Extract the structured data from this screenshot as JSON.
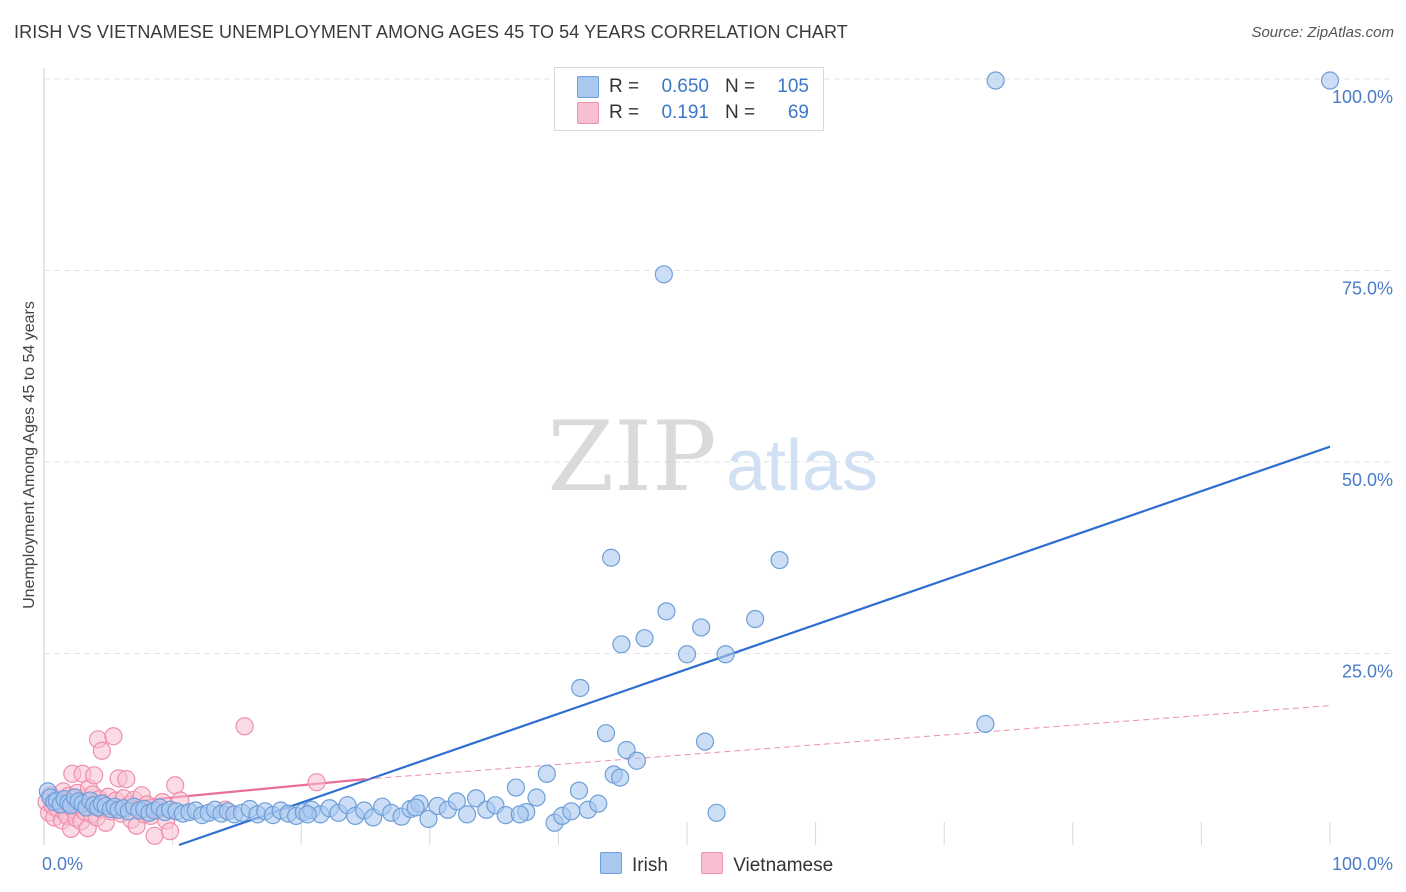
{
  "header": {
    "title": "IRISH VS VIETNAMESE UNEMPLOYMENT AMONG AGES 45 TO 54 YEARS CORRELATION CHART",
    "source": "Source: ZipAtlas.com"
  },
  "watermark": {
    "zip": "ZIP",
    "atlas": "atlas"
  },
  "stats_legend": {
    "rows": [
      {
        "r_label": "R =",
        "r_value": "0.650",
        "n_label": "N =",
        "n_value": "105",
        "color": "#a9c8f0"
      },
      {
        "r_label": "R =",
        "r_value": "0.191",
        "n_label": "N =",
        "n_value": "69",
        "color": "#f5b4c8"
      }
    ]
  },
  "bottom_legend": {
    "items": [
      {
        "label": "Irish",
        "color": "#a9c8f0"
      },
      {
        "label": "Vietnamese",
        "color": "#f5b4c8"
      }
    ]
  },
  "colors": {
    "irish_fill": "#a9c8f0",
    "irish_stroke": "#6f9fd8",
    "irish_line": "#2f6fd0",
    "viet_fill": "#f7bfd0",
    "viet_stroke": "#ee8fae",
    "viet_line": "#e86f9a",
    "tick_text": "#4a7cc8",
    "grid": "#e3e3e3"
  },
  "chart_data": {
    "type": "scatter",
    "title": "IRISH VS VIETNAMESE UNEMPLOYMENT AMONG AGES 45 TO 54 YEARS CORRELATION CHART",
    "xlabel": "",
    "ylabel": "Unemployment Among Ages 45 to 54 years",
    "xlim": [
      0,
      100
    ],
    "ylim": [
      0,
      100
    ],
    "x_tick_labels": [
      "0.0%",
      "100.0%"
    ],
    "y_ticks": [
      25,
      50,
      75,
      100
    ],
    "y_tick_labels": [
      "25.0%",
      "50.0%",
      "75.0%",
      "100.0%"
    ],
    "grid": true,
    "legend_position": "top-center",
    "series": [
      {
        "name": "Irish",
        "r": 0.65,
        "n": 105,
        "trend": {
          "x": [
            10.5,
            100
          ],
          "y": [
            0,
            52
          ]
        },
        "points": [
          [
            0.3,
            7
          ],
          [
            0.5,
            6.2
          ],
          [
            0.8,
            5.6
          ],
          [
            1.0,
            5.8
          ],
          [
            1.3,
            5.3
          ],
          [
            1.6,
            6.0
          ],
          [
            1.9,
            5.5
          ],
          [
            2.1,
            5.2
          ],
          [
            2.4,
            6.2
          ],
          [
            2.7,
            5.7
          ],
          [
            3.0,
            5.4
          ],
          [
            3.3,
            4.9
          ],
          [
            3.6,
            5.8
          ],
          [
            3.9,
            5.2
          ],
          [
            4.2,
            4.9
          ],
          [
            4.5,
            5.4
          ],
          [
            4.8,
            5.1
          ],
          [
            5.2,
            4.7
          ],
          [
            5.5,
            5.0
          ],
          [
            5.8,
            4.6
          ],
          [
            6.2,
            4.8
          ],
          [
            6.6,
            4.4
          ],
          [
            7.0,
            5.0
          ],
          [
            7.4,
            4.5
          ],
          [
            7.8,
            4.7
          ],
          [
            8.2,
            4.2
          ],
          [
            8.6,
            4.5
          ],
          [
            9.0,
            4.9
          ],
          [
            9.4,
            4.3
          ],
          [
            9.8,
            4.6
          ],
          [
            10.3,
            4.4
          ],
          [
            10.8,
            4.1
          ],
          [
            11.3,
            4.3
          ],
          [
            11.8,
            4.5
          ],
          [
            12.3,
            3.9
          ],
          [
            12.8,
            4.2
          ],
          [
            13.3,
            4.6
          ],
          [
            13.8,
            4.1
          ],
          [
            14.3,
            4.4
          ],
          [
            14.8,
            4.0
          ],
          [
            15.4,
            4.2
          ],
          [
            16.0,
            4.7
          ],
          [
            16.6,
            4.0
          ],
          [
            17.2,
            4.4
          ],
          [
            17.8,
            3.9
          ],
          [
            18.4,
            4.5
          ],
          [
            19.0,
            4.1
          ],
          [
            19.6,
            3.8
          ],
          [
            20.2,
            4.3
          ],
          [
            20.8,
            4.6
          ],
          [
            21.5,
            4.0
          ],
          [
            22.2,
            4.8
          ],
          [
            22.9,
            4.2
          ],
          [
            23.6,
            5.2
          ],
          [
            24.2,
            3.8
          ],
          [
            24.9,
            4.5
          ],
          [
            25.6,
            3.6
          ],
          [
            26.3,
            5.0
          ],
          [
            27.0,
            4.2
          ],
          [
            27.8,
            3.7
          ],
          [
            28.5,
            4.7
          ],
          [
            29.2,
            5.4
          ],
          [
            29.9,
            3.4
          ],
          [
            30.6,
            5.1
          ],
          [
            31.4,
            4.6
          ],
          [
            32.1,
            5.7
          ],
          [
            32.9,
            4.0
          ],
          [
            33.6,
            6.1
          ],
          [
            34.4,
            4.6
          ],
          [
            35.1,
            5.2
          ],
          [
            35.9,
            3.9
          ],
          [
            36.7,
            7.5
          ],
          [
            37.5,
            4.3
          ],
          [
            38.3,
            6.2
          ],
          [
            39.1,
            9.3
          ],
          [
            39.7,
            2.9
          ],
          [
            40.3,
            3.8
          ],
          [
            41.0,
            4.4
          ],
          [
            41.6,
            7.1
          ],
          [
            42.3,
            4.6
          ],
          [
            43.1,
            5.4
          ],
          [
            43.7,
            14.6
          ],
          [
            44.3,
            9.2
          ],
          [
            44.8,
            8.8
          ],
          [
            45.3,
            12.4
          ],
          [
            46.1,
            11.0
          ],
          [
            41.7,
            20.5
          ],
          [
            44.1,
            37.5
          ],
          [
            44.9,
            26.2
          ],
          [
            46.7,
            27.0
          ],
          [
            48.4,
            30.5
          ],
          [
            50.0,
            24.9
          ],
          [
            51.1,
            28.4
          ],
          [
            51.4,
            13.5
          ],
          [
            52.3,
            4.2
          ],
          [
            53.0,
            24.9
          ],
          [
            55.3,
            29.5
          ],
          [
            57.2,
            37.2
          ],
          [
            48.2,
            74.5
          ],
          [
            73.2,
            15.8
          ],
          [
            74.0,
            99.8
          ],
          [
            100,
            99.8
          ],
          [
            20.5,
            4.0
          ],
          [
            28.9,
            4.9
          ],
          [
            37.0,
            4.0
          ]
        ]
      },
      {
        "name": "Vietnamese",
        "r": 0.191,
        "n": 69,
        "trend_solid": {
          "x": [
            0,
            25
          ],
          "y": [
            4.6,
            8.6
          ]
        },
        "trend_dashed": {
          "x": [
            25,
            100
          ],
          "y": [
            8.6,
            18.2
          ]
        },
        "points": [
          [
            0.2,
            5.6
          ],
          [
            0.4,
            4.2
          ],
          [
            0.5,
            6.5
          ],
          [
            0.7,
            5.0
          ],
          [
            0.8,
            3.6
          ],
          [
            1.0,
            6.0
          ],
          [
            1.1,
            4.7
          ],
          [
            1.3,
            5.5
          ],
          [
            1.4,
            3.2
          ],
          [
            1.5,
            7.0
          ],
          [
            1.6,
            4.4
          ],
          [
            1.7,
            5.8
          ],
          [
            1.8,
            3.8
          ],
          [
            1.9,
            6.4
          ],
          [
            2.0,
            5.1
          ],
          [
            2.1,
            2.1
          ],
          [
            2.2,
            9.3
          ],
          [
            2.3,
            4.6
          ],
          [
            2.4,
            5.9
          ],
          [
            2.5,
            3.5
          ],
          [
            2.6,
            6.8
          ],
          [
            2.7,
            4.9
          ],
          [
            2.8,
            5.4
          ],
          [
            2.9,
            3.1
          ],
          [
            3.0,
            9.3
          ],
          [
            3.1,
            6.1
          ],
          [
            3.2,
            4.3
          ],
          [
            3.3,
            5.7
          ],
          [
            3.4,
            2.2
          ],
          [
            3.5,
            7.4
          ],
          [
            3.6,
            5.2
          ],
          [
            3.7,
            4.0
          ],
          [
            3.8,
            6.6
          ],
          [
            3.9,
            9.1
          ],
          [
            4.0,
            5.0
          ],
          [
            4.1,
            3.6
          ],
          [
            4.2,
            13.8
          ],
          [
            4.3,
            6.0
          ],
          [
            4.4,
            4.7
          ],
          [
            4.5,
            12.3
          ],
          [
            4.6,
            5.5
          ],
          [
            4.8,
            2.9
          ],
          [
            5.0,
            6.3
          ],
          [
            5.2,
            4.4
          ],
          [
            5.4,
            14.2
          ],
          [
            5.6,
            5.8
          ],
          [
            5.8,
            8.7
          ],
          [
            6.0,
            4.1
          ],
          [
            6.2,
            6.1
          ],
          [
            6.4,
            8.6
          ],
          [
            6.6,
            5.2
          ],
          [
            6.8,
            3.3
          ],
          [
            7.0,
            5.9
          ],
          [
            7.2,
            2.5
          ],
          [
            7.4,
            4.8
          ],
          [
            7.6,
            6.5
          ],
          [
            7.8,
            4.0
          ],
          [
            8.0,
            5.3
          ],
          [
            8.3,
            3.8
          ],
          [
            8.6,
            1.2
          ],
          [
            8.9,
            4.6
          ],
          [
            9.2,
            5.6
          ],
          [
            9.5,
            3.2
          ],
          [
            9.8,
            1.8
          ],
          [
            10.2,
            7.8
          ],
          [
            10.6,
            5.8
          ],
          [
            15.6,
            15.5
          ],
          [
            14.1,
            4.6
          ],
          [
            21.2,
            8.2
          ]
        ]
      }
    ]
  }
}
